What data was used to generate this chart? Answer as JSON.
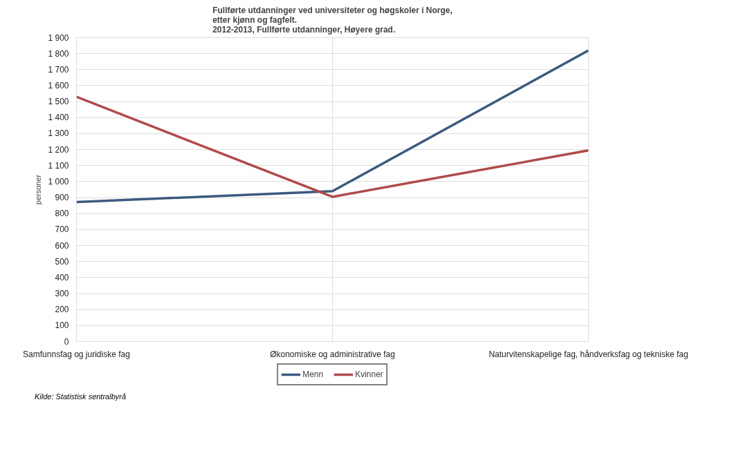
{
  "chart_data": {
    "type": "line",
    "title": "Fullførte utdanninger ved universiteter og høgskoler i Norge,\netter kjønn og fagfelt.\n2012-2013, Fullførte utdanninger, Høyere grad.",
    "ylabel": "personer",
    "categories": [
      "Samfunnsfag og juridiske fag",
      "Økonomiske og administrative fag",
      "Naturvitenskapelige fag, håndverksfag og tekniske fag"
    ],
    "series": [
      {
        "name": "Menn",
        "color": "#3c5a80",
        "values": [
          872,
          940,
          1820
        ]
      },
      {
        "name": "Kvinner",
        "color": "#b04a4a",
        "values": [
          1530,
          905,
          1195
        ]
      }
    ],
    "ylim": [
      0,
      1900
    ],
    "yticks": [
      0,
      100,
      200,
      300,
      400,
      500,
      600,
      700,
      800,
      900,
      {
        "value": 1000,
        "label": "1 000"
      },
      {
        "value": 1100,
        "label": "1 100"
      },
      {
        "value": 1200,
        "label": "1 200"
      },
      {
        "value": 1300,
        "label": "1 300"
      },
      {
        "value": 1400,
        "label": "1 400"
      },
      {
        "value": 1500,
        "label": "1 500"
      },
      {
        "value": 1600,
        "label": "1 600"
      },
      {
        "value": 1700,
        "label": "1 700"
      },
      {
        "value": 1800,
        "label": "1 800"
      },
      {
        "value": 1900,
        "label": "1 900"
      }
    ],
    "grid": true,
    "legend": "bottom",
    "marker": "none",
    "line_style": "solid",
    "annotations": [
      "Kilde: Statistisk sentralbyrå"
    ]
  }
}
